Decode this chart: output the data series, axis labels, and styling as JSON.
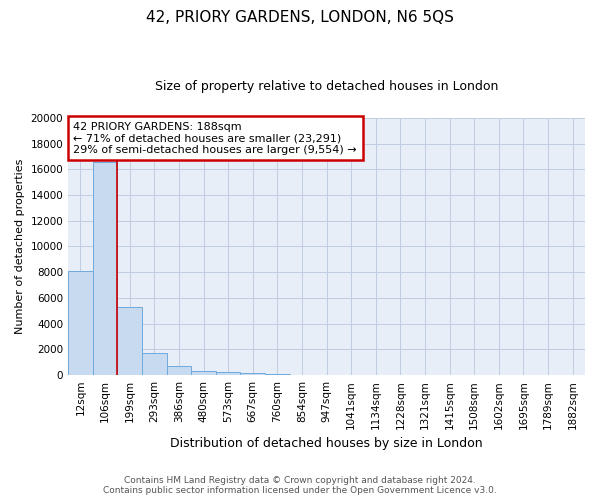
{
  "title": "42, PRIORY GARDENS, LONDON, N6 5QS",
  "subtitle": "Size of property relative to detached houses in London",
  "xlabel": "Distribution of detached houses by size in London",
  "ylabel": "Number of detached properties",
  "bar_labels": [
    "12sqm",
    "106sqm",
    "199sqm",
    "293sqm",
    "386sqm",
    "480sqm",
    "573sqm",
    "667sqm",
    "760sqm",
    "854sqm",
    "947sqm",
    "1041sqm",
    "1134sqm",
    "1228sqm",
    "1321sqm",
    "1415sqm",
    "1508sqm",
    "1602sqm",
    "1695sqm",
    "1789sqm",
    "1882sqm"
  ],
  "bar_values": [
    8100,
    16600,
    5300,
    1750,
    700,
    280,
    200,
    130,
    100,
    0,
    0,
    0,
    0,
    0,
    0,
    0,
    0,
    0,
    0,
    0,
    0
  ],
  "bar_color": "#c8daf0",
  "bar_edge_color": "#6eaadd",
  "ylim": [
    0,
    20000
  ],
  "yticks": [
    0,
    2000,
    4000,
    6000,
    8000,
    10000,
    12000,
    14000,
    16000,
    18000,
    20000
  ],
  "marker_label": "42 PRIORY GARDENS: 188sqm",
  "annotation_line1": "← 71% of detached houses are smaller (23,291)",
  "annotation_line2": "29% of semi-detached houses are larger (9,554) →",
  "marker_color": "#cc0000",
  "footer1": "Contains HM Land Registry data © Crown copyright and database right 2024.",
  "footer2": "Contains public sector information licensed under the Open Government Licence v3.0.",
  "bg_color": "#e8eef8",
  "plot_bg": "#e8eef8",
  "grid_color": "#c0cce0",
  "title_fontsize": 11,
  "subtitle_fontsize": 9
}
